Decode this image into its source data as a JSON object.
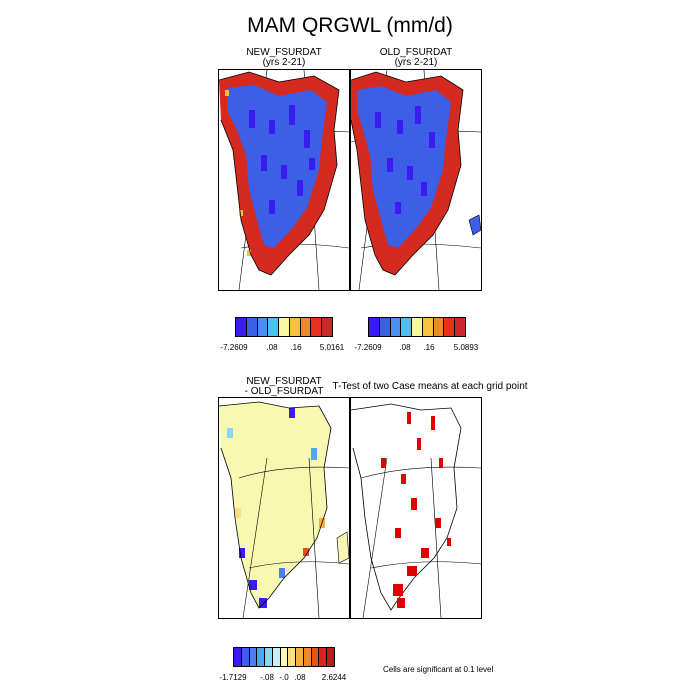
{
  "title": "MAM QRGWL (mm/d)",
  "panels": {
    "top_left": {
      "title_line1": "NEW_FSURDAT",
      "title_line2": "(yrs 2-21)"
    },
    "top_right": {
      "title_line1": "OLD_FSURDAT",
      "title_line2": "(yrs 2-21)"
    },
    "bottom_left": {
      "title_line1": "NEW_FSURDAT",
      "title_line2": "- OLD_FSURDAT"
    },
    "bottom_right": {
      "title": "T-Test of two Case means at each grid point"
    }
  },
  "colorbars": {
    "top_left": {
      "colors": [
        "#3a1cf0",
        "#3c5fe6",
        "#4a8ff0",
        "#4ec0f0",
        "#f8f8a0",
        "#f8c040",
        "#f08a28",
        "#e83020",
        "#c82828"
      ],
      "labels": [
        "-7.2609",
        ".08",
        ".16",
        "5.0161"
      ]
    },
    "top_right": {
      "colors": [
        "#3a1cf0",
        "#3c5fe6",
        "#4a8ff0",
        "#4ec0f0",
        "#f8f8a0",
        "#f8c040",
        "#f08a28",
        "#e83020",
        "#c82828"
      ],
      "labels": [
        "-7.2609",
        ".08",
        ".16",
        "5.0893"
      ]
    },
    "bottom": {
      "colors": [
        "#3a1cf0",
        "#3c5fe6",
        "#4a7ff0",
        "#4aa8f0",
        "#8ad8f0",
        "#c8f0f8",
        "#f8f8b0",
        "#f8e080",
        "#f8b040",
        "#f08a28",
        "#e85020",
        "#e02020",
        "#c01818"
      ],
      "labels": [
        "-1.7129",
        "-.08",
        "-.0",
        ".08",
        "2.6244"
      ]
    }
  },
  "footnote": "Cells are significant at 0.1 level",
  "map_colors": {
    "land_blue": "#3c5fe6",
    "deep_blue": "#3a1cf0",
    "coast_red": "#d42a20",
    "diff_yellow": "#f8f8b0",
    "signif_red": "#e00000"
  }
}
